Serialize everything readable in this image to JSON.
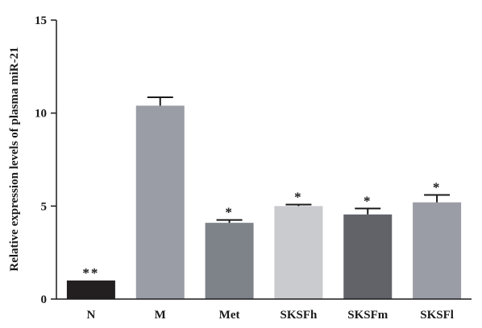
{
  "chart_data": {
    "type": "bar",
    "title": "",
    "xlabel": "",
    "ylabel": "Relative expression levels of plasma miR-21",
    "ylim": [
      0,
      15
    ],
    "yticks": [
      0,
      5,
      10,
      15
    ],
    "grid": false,
    "categories": [
      "N",
      "M",
      "Met",
      "SKSFh",
      "SKSFm",
      "SKSFl"
    ],
    "values": [
      1.0,
      10.4,
      4.1,
      5.0,
      4.55,
      5.2
    ],
    "errors": [
      0.0,
      0.45,
      0.15,
      0.08,
      0.32,
      0.4
    ],
    "annotations": [
      "**",
      "",
      "*",
      "*",
      "*",
      "*"
    ],
    "colors": [
      "#231f20",
      "#9a9da6",
      "#7e8289",
      "#cacbcf",
      "#616369",
      "#9a9da6"
    ]
  }
}
